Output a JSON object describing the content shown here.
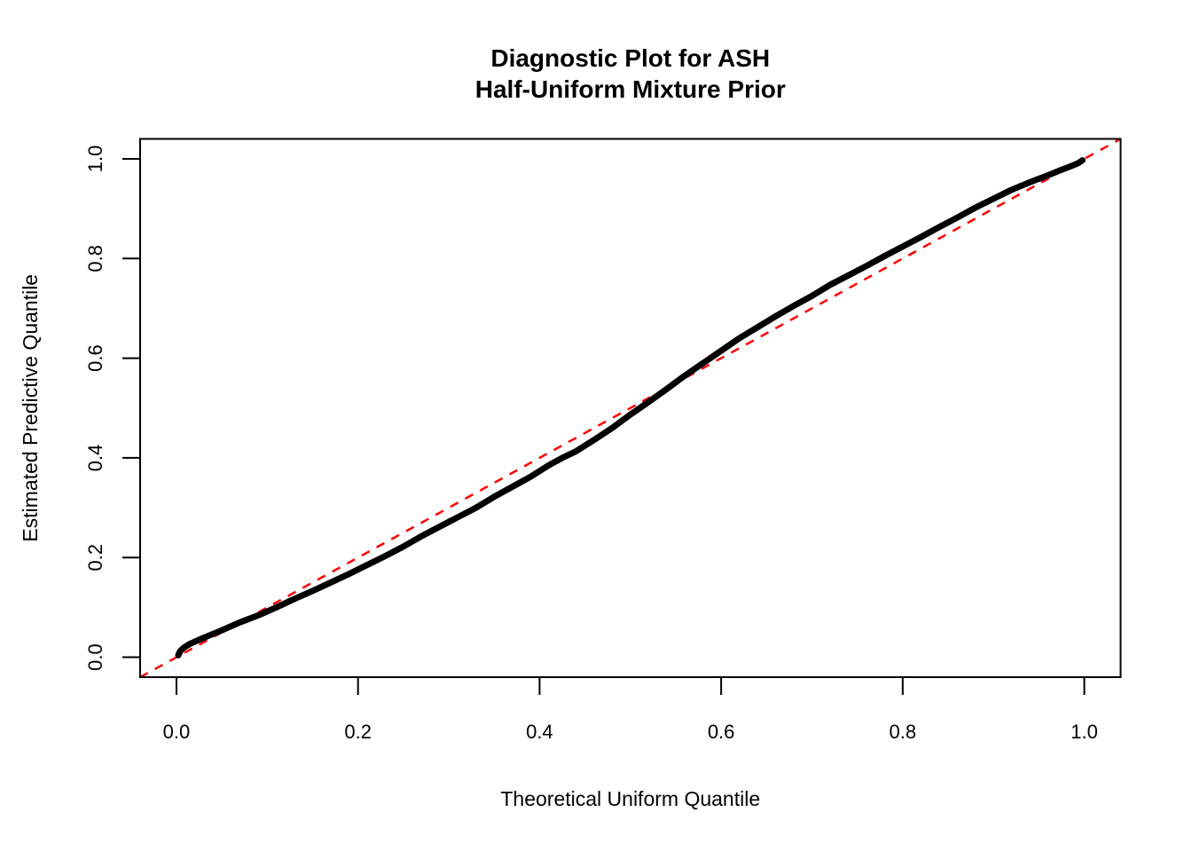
{
  "figure": {
    "background": "#FFFFFF"
  },
  "chart_data": {
    "type": "line",
    "title_lines": [
      "Diagnostic Plot for ASH",
      "Half-Uniform Mixture Prior"
    ],
    "xlabel": "Theoretical Uniform Quantile",
    "ylabel": "Estimated Predictive Quantile",
    "xlim": [
      -0.04,
      1.04
    ],
    "ylim": [
      -0.04,
      1.04
    ],
    "x_ticks": [
      0.0,
      0.2,
      0.4,
      0.6,
      0.8,
      1.0
    ],
    "y_ticks": [
      0.0,
      0.2,
      0.4,
      0.6,
      0.8,
      1.0
    ],
    "grid": false,
    "legend": false,
    "series": [
      {
        "name": "estimated-predictive-quantile-curve",
        "color": "#000000",
        "style": "solid",
        "width": 7,
        "points": [
          [
            0.002,
            0.004
          ],
          [
            0.004,
            0.012
          ],
          [
            0.008,
            0.019
          ],
          [
            0.015,
            0.027
          ],
          [
            0.03,
            0.039
          ],
          [
            0.05,
            0.054
          ],
          [
            0.07,
            0.07
          ],
          [
            0.09,
            0.084
          ],
          [
            0.11,
            0.1
          ],
          [
            0.13,
            0.117
          ],
          [
            0.15,
            0.133
          ],
          [
            0.17,
            0.15
          ],
          [
            0.19,
            0.167
          ],
          [
            0.21,
            0.185
          ],
          [
            0.23,
            0.203
          ],
          [
            0.25,
            0.222
          ],
          [
            0.27,
            0.243
          ],
          [
            0.29,
            0.262
          ],
          [
            0.31,
            0.281
          ],
          [
            0.33,
            0.3
          ],
          [
            0.35,
            0.322
          ],
          [
            0.37,
            0.342
          ],
          [
            0.39,
            0.362
          ],
          [
            0.41,
            0.385
          ],
          [
            0.425,
            0.4
          ],
          [
            0.44,
            0.413
          ],
          [
            0.46,
            0.436
          ],
          [
            0.48,
            0.46
          ],
          [
            0.5,
            0.487
          ],
          [
            0.52,
            0.512
          ],
          [
            0.54,
            0.538
          ],
          [
            0.56,
            0.565
          ],
          [
            0.58,
            0.59
          ],
          [
            0.6,
            0.615
          ],
          [
            0.62,
            0.64
          ],
          [
            0.64,
            0.662
          ],
          [
            0.66,
            0.684
          ],
          [
            0.68,
            0.705
          ],
          [
            0.7,
            0.725
          ],
          [
            0.72,
            0.747
          ],
          [
            0.74,
            0.766
          ],
          [
            0.76,
            0.785
          ],
          [
            0.78,
            0.805
          ],
          [
            0.8,
            0.824
          ],
          [
            0.82,
            0.843
          ],
          [
            0.84,
            0.863
          ],
          [
            0.86,
            0.882
          ],
          [
            0.88,
            0.902
          ],
          [
            0.9,
            0.92
          ],
          [
            0.92,
            0.938
          ],
          [
            0.94,
            0.953
          ],
          [
            0.96,
            0.967
          ],
          [
            0.975,
            0.978
          ],
          [
            0.985,
            0.985
          ],
          [
            0.993,
            0.991
          ],
          [
            0.998,
            0.997
          ]
        ]
      },
      {
        "name": "reference-diagonal-y-equals-x",
        "color": "#FF0000",
        "style": "dashed",
        "width": 2.5,
        "points": [
          [
            -0.04,
            -0.04
          ],
          [
            1.04,
            1.04
          ]
        ]
      }
    ]
  },
  "colors": {
    "curve": "#000000",
    "reference_line": "#FF0000",
    "axis": "#000000",
    "background": "#FFFFFF"
  }
}
